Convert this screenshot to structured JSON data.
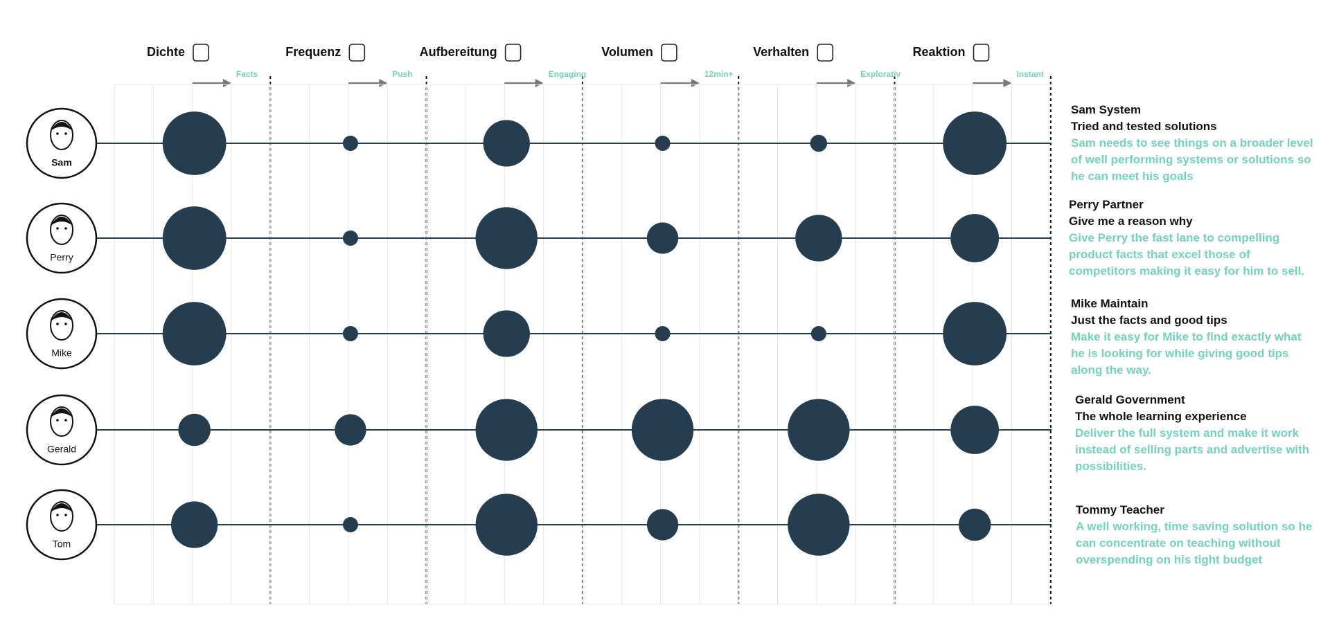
{
  "chart_data": {
    "type": "bubble",
    "categories": [
      "Dichte",
      "Frequenz",
      "Aufbereitung",
      "Volumen",
      "Verhalten",
      "Reaktion"
    ],
    "directions": [
      "Facts",
      "Push",
      "Engaging",
      "12min+",
      "Explorativ",
      "Instant"
    ],
    "color": "#263d50",
    "series": [
      {
        "name": "Sam",
        "title": "Sam System",
        "subtitle": "Tried and tested solutions",
        "description": "Sam needs to see things on a broader level of well performing systems or solutions so he can meet his goals",
        "values": [
          75,
          18,
          55,
          18,
          20,
          75
        ]
      },
      {
        "name": "Perry",
        "title": "Perry Partner",
        "subtitle": "Give me a reason why",
        "description": "Give Perry the fast lane to compelling product facts that excel those of competitors making it easy for him to sell.",
        "values": [
          75,
          18,
          73,
          37,
          55,
          57
        ]
      },
      {
        "name": "Mike",
        "title": "Mike Maintain",
        "subtitle": "Just the facts and good tips",
        "description": "Make it easy for Mike to find exactly what he is looking for while giving good tips along the way.",
        "values": [
          75,
          18,
          55,
          18,
          18,
          75
        ]
      },
      {
        "name": "Gerald",
        "title": "Gerald Government",
        "subtitle": "The whole learning experience",
        "description": "Deliver the full system and make it work instead of selling parts and advertise with possibilities.",
        "values": [
          38,
          37,
          73,
          73,
          73,
          57
        ]
      },
      {
        "name": "Tom",
        "title": "Tommy Teacher",
        "description": "A well working, time saving solution so he can concentrate on teaching without overspending on his tight budget",
        "values": [
          55,
          18,
          73,
          37,
          73,
          38
        ]
      }
    ]
  }
}
